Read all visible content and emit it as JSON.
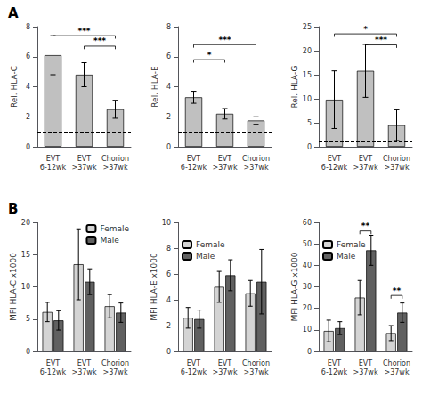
{
  "chart_data": [
    {
      "type": "bar",
      "title": "A",
      "categories": [
        "EVT\n6-12wk",
        "EVT\n>37wk",
        "Chorion\n>37wk"
      ],
      "ylabel": "Rel. HLA-C",
      "ylim": [
        0,
        8
      ],
      "yticks": [
        0,
        2,
        4,
        6,
        8
      ],
      "grid": false,
      "series": [
        {
          "color": "#c0c0c0",
          "values": [
            6.1,
            4.8,
            2.5
          ],
          "errors": [
            1.3,
            0.8,
            0.6
          ]
        }
      ],
      "reference_lines": [
        {
          "y": 1.0,
          "line_style": "dashed"
        }
      ],
      "annotations": [
        {
          "from": "EVT\n6-12wk",
          "to": "Chorion\n>37wk",
          "y": 7.4,
          "text": "***"
        },
        {
          "from": "EVT\n>37wk",
          "to": "Chorion\n>37wk",
          "y": 6.7,
          "text": "***"
        }
      ]
    },
    {
      "type": "bar",
      "categories": [
        "EVT\n6-12wk",
        "EVT\n>37wk",
        "Chorion\n>37wk"
      ],
      "ylabel": "Rel. HLA-E",
      "ylim": [
        0,
        8
      ],
      "yticks": [
        0,
        2,
        4,
        6,
        8
      ],
      "grid": false,
      "series": [
        {
          "color": "#c0c0c0",
          "values": [
            3.3,
            2.2,
            1.75
          ],
          "errors": [
            0.4,
            0.35,
            0.25
          ]
        }
      ],
      "reference_lines": [
        {
          "y": 1.0,
          "line_style": "dashed"
        }
      ],
      "annotations": [
        {
          "from": "EVT\n6-12wk",
          "to": "Chorion\n>37wk",
          "y": 6.8,
          "text": "***"
        },
        {
          "from": "EVT\n6-12wk",
          "to": "EVT\n>37wk",
          "y": 5.8,
          "text": "*"
        }
      ]
    },
    {
      "type": "bar",
      "categories": [
        "EVT\n6-12wk",
        "EVT\n>37wk",
        "Chorion\n>37wk"
      ],
      "ylabel": "Rel. HLA-G",
      "ylim": [
        0,
        25
      ],
      "yticks": [
        0,
        5,
        10,
        15,
        20,
        25
      ],
      "grid": false,
      "series": [
        {
          "color": "#c0c0c0",
          "values": [
            9.8,
            15.8,
            4.5
          ],
          "errors": [
            6.0,
            5.5,
            3.2
          ]
        }
      ],
      "reference_lines": [
        {
          "y": 1.0,
          "line_style": "dashed"
        }
      ],
      "annotations": [
        {
          "from": "EVT\n6-12wk",
          "to": "Chorion\n>37wk",
          "y": 23.5,
          "text": "*"
        },
        {
          "from": "EVT\n>37wk",
          "to": "Chorion\n>37wk",
          "y": 21.2,
          "text": "***"
        }
      ]
    },
    {
      "type": "bar",
      "title": "B",
      "categories": [
        "EVT\n6-12wk",
        "EVT\n>37wk",
        "Chorion\n>37wk"
      ],
      "ylabel": "MFI HLA-C x1000",
      "ylim": [
        0,
        20
      ],
      "yticks": [
        0,
        5,
        10,
        15,
        20
      ],
      "grid": false,
      "legend": "upper right",
      "series": [
        {
          "name": "Female",
          "color": "#d4d4d4",
          "values": [
            6.1,
            13.5,
            7.0
          ],
          "errors": [
            1.5,
            5.5,
            1.8
          ]
        },
        {
          "name": "Male",
          "color": "#606060",
          "values": [
            4.8,
            10.8,
            6.0
          ],
          "errors": [
            1.5,
            2.0,
            1.5
          ]
        }
      ]
    },
    {
      "type": "bar",
      "categories": [
        "EVT\n6-12wk",
        "EVT\n>37wk",
        "Chorion\n>37wk"
      ],
      "ylabel": "MFI HLA-E x1000",
      "ylim": [
        0,
        10
      ],
      "yticks": [
        0,
        2,
        4,
        6,
        8,
        10
      ],
      "grid": false,
      "legend": "upper left",
      "series": [
        {
          "name": "Female",
          "color": "#d4d4d4",
          "values": [
            2.6,
            5.0,
            4.5
          ],
          "errors": [
            0.8,
            1.2,
            1.0
          ]
        },
        {
          "name": "Male",
          "color": "#606060",
          "values": [
            2.5,
            5.9,
            5.4
          ],
          "errors": [
            0.7,
            1.2,
            2.5
          ]
        }
      ]
    },
    {
      "type": "bar",
      "categories": [
        "EVT\n6-12wk",
        "EVT\n>37wk",
        "Chorion\n>37wk"
      ],
      "ylabel": "MFI HLA-G x1000",
      "ylim": [
        0,
        60
      ],
      "yticks": [
        0,
        10,
        20,
        30,
        40,
        50,
        60
      ],
      "grid": false,
      "legend": "upper left",
      "series": [
        {
          "name": "Female",
          "color": "#d4d4d4",
          "values": [
            9.5,
            25.0,
            8.5
          ],
          "errors": [
            5.0,
            8.0,
            3.5
          ]
        },
        {
          "name": "Male",
          "color": "#606060",
          "values": [
            10.8,
            47.0,
            18.0
          ],
          "errors": [
            3.0,
            7.0,
            4.5
          ]
        }
      ],
      "annotations": [
        {
          "category": "EVT\n>37wk",
          "y": 56,
          "text": "**"
        },
        {
          "category": "Chorion\n>37wk",
          "y": 26,
          "text": "**"
        }
      ]
    }
  ]
}
